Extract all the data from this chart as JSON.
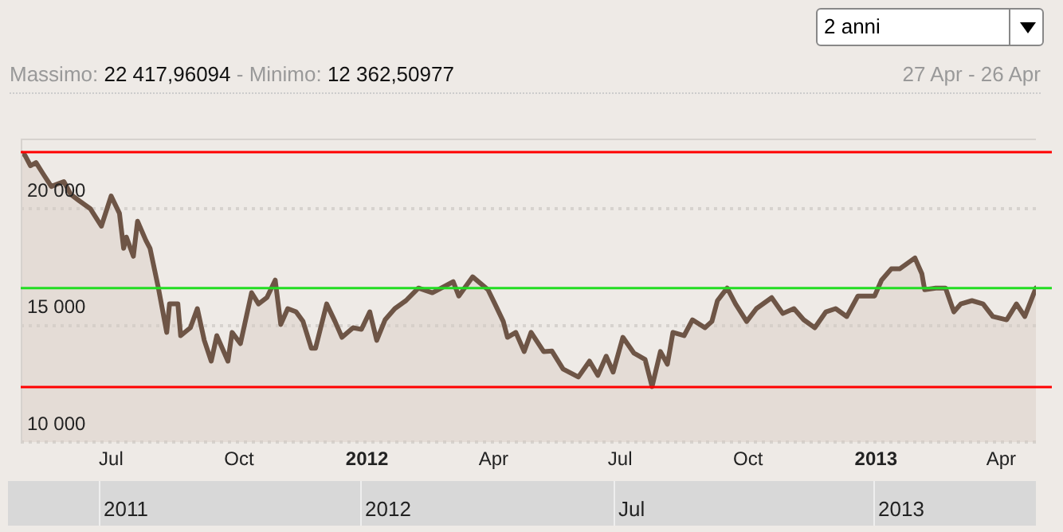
{
  "chart_data": {
    "type": "area",
    "title": "Massimo: 22 417,96094 - Minimo: 12 362,50977",
    "annotations": [
      "2 anni",
      "27 Apr - 26 Apr",
      "2011",
      "2012",
      "Jul",
      "2013"
    ],
    "x": [
      "2011-04-27",
      "2011-04-30",
      "2011-05-04",
      "2011-05-08",
      "2011-05-13",
      "2011-05-19",
      "2011-05-22",
      "2011-05-28",
      "2011-06-02",
      "2011-06-08",
      "2011-06-16",
      "2011-06-24",
      "2011-07-01",
      "2011-07-07",
      "2011-07-10",
      "2011-07-12",
      "2011-07-17",
      "2011-07-20",
      "2011-07-26",
      "2011-07-29",
      "2011-08-04",
      "2011-08-10",
      "2011-08-12",
      "2011-08-18",
      "2011-08-20",
      "2011-08-27",
      "2011-09-01",
      "2011-09-06",
      "2011-09-11",
      "2011-09-15",
      "2011-09-23",
      "2011-09-26",
      "2011-10-02",
      "2011-10-10",
      "2011-10-15",
      "2011-10-21",
      "2011-10-27",
      "2011-10-31",
      "2011-11-05",
      "2011-11-11",
      "2011-11-16",
      "2011-11-22",
      "2011-11-25",
      "2011-12-03",
      "2011-12-09",
      "2011-12-14",
      "2011-12-22",
      "2011-12-28",
      "2012-01-03",
      "2012-01-08",
      "2012-01-14",
      "2012-01-21",
      "2012-01-29",
      "2012-02-07",
      "2012-02-17",
      "2012-03-03",
      "2012-03-07",
      "2012-03-17",
      "2012-03-28",
      "2012-04-02",
      "2012-04-08",
      "2012-04-11",
      "2012-04-17",
      "2012-04-23",
      "2012-04-28",
      "2012-05-07",
      "2012-05-13",
      "2012-05-21",
      "2012-06-01",
      "2012-06-09",
      "2012-06-15",
      "2012-06-21",
      "2012-06-26",
      "2012-07-03",
      "2012-07-11",
      "2012-07-19",
      "2012-07-24",
      "2012-07-30",
      "2012-08-04",
      "2012-08-08",
      "2012-08-16",
      "2012-08-22",
      "2012-08-31",
      "2012-09-05",
      "2012-09-09",
      "2012-09-16",
      "2012-09-22",
      "2012-09-30",
      "2012-10-07",
      "2012-10-18",
      "2012-10-26",
      "2012-11-03",
      "2012-11-10",
      "2012-11-18",
      "2012-11-26",
      "2012-12-03",
      "2012-12-11",
      "2012-12-19",
      "2012-12-31",
      "2013-01-05",
      "2013-01-12",
      "2013-01-18",
      "2013-01-29",
      "2013-02-03",
      "2013-02-05",
      "2013-02-13",
      "2013-02-20",
      "2013-02-26",
      "2013-03-03",
      "2013-03-11",
      "2013-03-19",
      "2013-03-26",
      "2013-04-05",
      "2013-04-12",
      "2013-04-18",
      "2013-04-26"
    ],
    "series": [
      {
        "color": "#6e5546",
        "values": [
          22400,
          22290,
          21840,
          21970,
          21500,
          20950,
          21020,
          21160,
          20610,
          20340,
          20000,
          19250,
          20540,
          19800,
          18300,
          18780,
          17960,
          19460,
          18640,
          18300,
          16600,
          14700,
          15920,
          15920,
          14560,
          14900,
          15720,
          14360,
          13470,
          14560,
          13470,
          14700,
          14220,
          16400,
          15920,
          16190,
          16940,
          15040,
          15720,
          15580,
          15170,
          14020,
          14020,
          15920,
          15170,
          14490,
          14900,
          14830,
          15580,
          14360,
          15240,
          15720,
          16060,
          16600,
          16400,
          16870,
          16260,
          17080,
          16530,
          15920,
          15170,
          14490,
          14700,
          13880,
          14700,
          13880,
          13900,
          13130,
          12790,
          13470,
          12860,
          13680,
          13000,
          14490,
          13810,
          13540,
          12380,
          13880,
          13340,
          14700,
          14560,
          15240,
          14900,
          15170,
          16060,
          16600,
          15920,
          15170,
          15720,
          16190,
          15510,
          15720,
          15240,
          14900,
          15580,
          15720,
          15380,
          16260,
          16260,
          16940,
          17420,
          17420,
          17890,
          17210,
          16530,
          16600,
          16600,
          15580,
          15920,
          16060,
          15920,
          15380,
          15240,
          15920,
          15380,
          16600
        ]
      }
    ],
    "xlim": [
      "2011-04-27",
      "2013-04-26"
    ],
    "xticks": [
      {
        "value": "2011-07-01",
        "label": "Jul"
      },
      {
        "value": "2011-10-01",
        "label": "Oct"
      },
      {
        "value": "2012-01-01",
        "label": "2012"
      },
      {
        "value": "2012-04-01",
        "label": "Apr"
      },
      {
        "value": "2012-07-01",
        "label": "Jul"
      },
      {
        "value": "2012-10-01",
        "label": "Oct"
      },
      {
        "value": "2013-01-01",
        "label": "2013"
      },
      {
        "value": "2013-04-01",
        "label": "Apr"
      }
    ],
    "ylim": [
      10000,
      23000
    ],
    "yticks": [
      {
        "value": 10000,
        "label": "10 000"
      },
      {
        "value": 15000,
        "label": "15 000"
      },
      {
        "value": 20000,
        "label": "20 000"
      }
    ],
    "grid": "y",
    "ref_lines": [
      {
        "axis": "y",
        "value": 22417.96094,
        "color": "#ff0000"
      },
      {
        "axis": "y",
        "value": 12362.50977,
        "color": "#ff0000"
      },
      {
        "axis": "y",
        "value": 16600,
        "color": "#22dd22"
      }
    ],
    "legend": false,
    "marker": "none"
  }
}
